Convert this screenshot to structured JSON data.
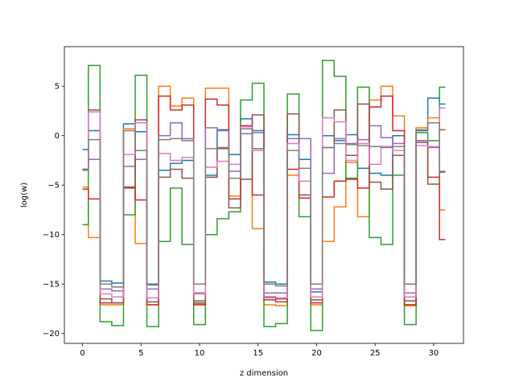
{
  "chart_data": {
    "type": "line",
    "step": "mid",
    "xlabel": "z dimension",
    "ylabel": "log(w)",
    "xlim": [
      -1.55,
      32.55
    ],
    "ylim": [
      -21,
      9
    ],
    "x_ticks": [
      0,
      5,
      10,
      15,
      20,
      25,
      30
    ],
    "y_ticks": [
      -20,
      -15,
      -10,
      -5,
      0,
      5
    ],
    "grid": false,
    "x": [
      0,
      1,
      2,
      3,
      4,
      5,
      6,
      7,
      8,
      9,
      10,
      11,
      12,
      13,
      14,
      15,
      16,
      17,
      18,
      19,
      20,
      21,
      22,
      23,
      24,
      25,
      26,
      27,
      28,
      29,
      30,
      31
    ],
    "series": [
      {
        "color": "#1f77b4",
        "values": [
          -1.4,
          0.5,
          -14.7,
          -14.9,
          1.2,
          0.4,
          -15.0,
          -3.5,
          -2.8,
          -2.5,
          -16.9,
          -4.0,
          0.6,
          -1.9,
          1.7,
          0.5,
          -14.8,
          -15.0,
          0.1,
          -2.4,
          -15.8,
          0.0,
          -0.5,
          0.1,
          -3.3,
          -3.8,
          -4.0,
          0.0,
          -17.1,
          0.5,
          3.8,
          3.2
        ]
      },
      {
        "color": "#ff7f0e",
        "values": [
          -5.2,
          -10.3,
          -17.1,
          -17.1,
          0.7,
          -10.9,
          -17.1,
          5.0,
          3.0,
          3.8,
          -17.0,
          4.8,
          4.8,
          -6.1,
          1.0,
          -9.4,
          -17.1,
          -17.2,
          -4.0,
          -6.3,
          -17.1,
          -10.7,
          -7.2,
          -2.7,
          -8.2,
          3.6,
          5.0,
          2.0,
          -17.2,
          0.8,
          1.8,
          -7.5
        ]
      },
      {
        "color": "#2ca02c",
        "values": [
          -9.0,
          7.1,
          -18.8,
          -19.2,
          -8.0,
          6.1,
          -19.3,
          -10.7,
          -5.3,
          -11.0,
          -19.1,
          -10.0,
          -8.4,
          -7.7,
          3.6,
          5.3,
          -19.3,
          -19.0,
          4.2,
          -8.2,
          -19.7,
          7.6,
          6.0,
          -4.3,
          4.9,
          -10.3,
          -11.0,
          -4.0,
          -19.1,
          0.3,
          -0.5,
          4.9
        ]
      },
      {
        "color": "#d62728",
        "values": [
          -5.4,
          -6.4,
          -16.9,
          -16.9,
          -5.2,
          -6.5,
          -17.1,
          4.0,
          2.6,
          3.1,
          -17.1,
          3.7,
          3.1,
          -6.4,
          1.0,
          -6.0,
          -16.6,
          -16.8,
          -3.4,
          -6.3,
          -16.9,
          -6.2,
          -4.6,
          -4.4,
          -5.3,
          2.9,
          4.0,
          0.5,
          -17.1,
          -0.5,
          -4.2,
          -10.5
        ]
      },
      {
        "color": "#9467bd",
        "values": [
          -3.4,
          -2.4,
          -15.5,
          -15.7,
          -3.1,
          -2.4,
          -15.5,
          0.0,
          1.3,
          -0.5,
          -15.9,
          0.8,
          0.5,
          -3.6,
          0.2,
          0.3,
          -15.9,
          -15.9,
          -0.3,
          -0.3,
          -15.5,
          -3.8,
          -0.3,
          -0.8,
          -0.4,
          1.0,
          -0.2,
          -0.8,
          -15.9,
          -0.5,
          -1.2,
          -3.6
        ]
      },
      {
        "color": "#8c564b",
        "values": [
          -3.4,
          2.6,
          -16.5,
          -16.9,
          -5.3,
          1.6,
          -16.8,
          -4.2,
          -3.4,
          -4.3,
          -16.7,
          -4.2,
          -1.3,
          -7.3,
          -4.4,
          2.1,
          -16.3,
          -16.5,
          2.2,
          -6.0,
          -16.6,
          -1.2,
          2.6,
          -2.0,
          3.2,
          -4.7,
          -5.4,
          -2.0,
          -16.7,
          -0.7,
          -4.9,
          0.6
        ]
      },
      {
        "color": "#e377c2",
        "values": [
          -3.5,
          2.4,
          -16.0,
          -16.3,
          -1.9,
          1.3,
          -16.4,
          -1.8,
          -2.5,
          -2.2,
          -16.0,
          -3.2,
          -2.6,
          -2.9,
          0.9,
          -1.5,
          -16.4,
          -16.4,
          -0.8,
          -4.6,
          -16.3,
          1.8,
          1.4,
          -2.5,
          -0.8,
          -2.9,
          -1.1,
          -1.5,
          -16.3,
          -1.0,
          -1.1,
          2.8
        ]
      },
      {
        "color": "#7f7f7f",
        "values": [
          -3.5,
          -0.4,
          -15.0,
          -15.3,
          0.5,
          -1.5,
          -15.1,
          -0.4,
          -0.3,
          -0.3,
          -15.0,
          -1.3,
          -1.2,
          -4.3,
          0.7,
          -1.3,
          -15.0,
          -15.2,
          -1.5,
          -3.3,
          -15.0,
          -1.2,
          -0.8,
          -0.9,
          -1.0,
          -1.1,
          -1.2,
          -1.1,
          -15.0,
          0.6,
          1.3,
          -3.7
        ]
      }
    ]
  }
}
